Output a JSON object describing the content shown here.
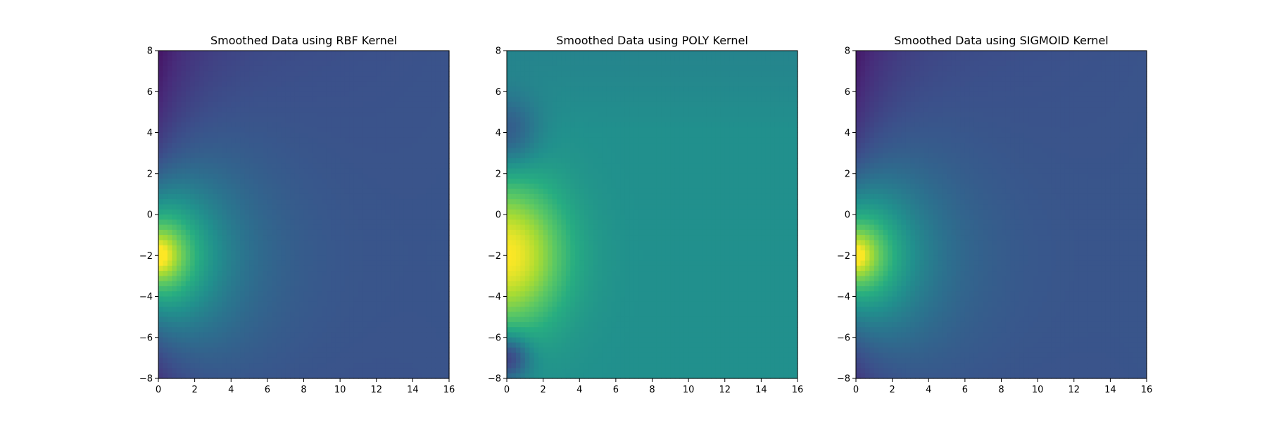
{
  "chart_data": [
    {
      "type": "heatmap",
      "title": "Smoothed Data using RBF Kernel",
      "kernel": "rbf",
      "xlim": [
        0,
        16
      ],
      "ylim": [
        -8,
        8
      ],
      "xticks": [
        0,
        2,
        4,
        6,
        8,
        10,
        12,
        14,
        16
      ],
      "yticks": [
        -8,
        -6,
        -4,
        -2,
        0,
        2,
        4,
        6,
        8
      ],
      "colormap": "viridis",
      "peak": {
        "x": 0,
        "y": -2
      },
      "grid": false
    },
    {
      "type": "heatmap",
      "title": "Smoothed Data using POLY Kernel",
      "kernel": "poly",
      "xlim": [
        0,
        16
      ],
      "ylim": [
        -8,
        8
      ],
      "xticks": [
        0,
        2,
        4,
        6,
        8,
        10,
        12,
        14,
        16
      ],
      "yticks": [
        -8,
        -6,
        -4,
        -2,
        0,
        2,
        4,
        6,
        8
      ],
      "colormap": "viridis",
      "peak": {
        "x": 0,
        "y": -2
      },
      "grid": false
    },
    {
      "type": "heatmap",
      "title": "Smoothed Data using SIGMOID Kernel",
      "kernel": "sigmoid",
      "xlim": [
        0,
        16
      ],
      "ylim": [
        -8,
        8
      ],
      "xticks": [
        0,
        2,
        4,
        6,
        8,
        10,
        12,
        14,
        16
      ],
      "yticks": [
        -8,
        -6,
        -4,
        -2,
        0,
        2,
        4,
        6,
        8
      ],
      "colormap": "viridis",
      "peak": {
        "x": 0,
        "y": -2
      },
      "grid": false
    }
  ]
}
